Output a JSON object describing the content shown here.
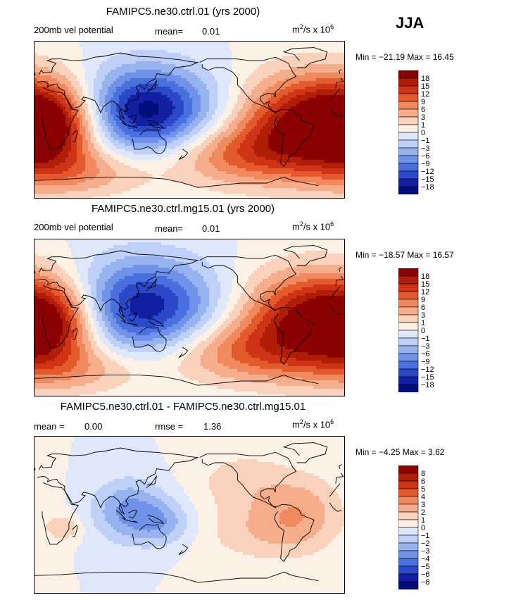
{
  "season": "JJA",
  "panels": [
    {
      "title": "FAMIPC5.ne30.ctrl.01 (yrs 2000)",
      "left_label": "200mb vel potential",
      "stat1_label": "mean=",
      "stat1_value": "0.01",
      "units_base": "m",
      "units_exp1": "2",
      "units_mid": "/s x 10",
      "units_exp2": "6",
      "minmax": "Min = −21.19 Max =  16.45",
      "legend_labels": [
        "18",
        "15",
        "12",
        "9",
        "6",
        "3",
        "1",
        "0",
        "−1",
        "−3",
        "−6",
        "−9",
        "−12",
        "−15",
        "−18"
      ],
      "legend_colors": [
        "#8b0000",
        "#b01e08",
        "#cf3416",
        "#e35a2c",
        "#f08a5e",
        "#f5ad8c",
        "#fad1bb",
        "#fdf0e4",
        "#dfe8fb",
        "#bed0f7",
        "#96b3f0",
        "#6f92e8",
        "#4a6fdf",
        "#2a48c8",
        "#121fa0",
        "#000d7a"
      ],
      "field": {
        "base": "#dfe8fb",
        "blobs": [
          {
            "lon": 20,
            "lat": -5,
            "amp": 0.95,
            "sx": 40,
            "sy": 35
          },
          {
            "lon": -45,
            "lat": -5,
            "amp": 1.0,
            "sx": 55,
            "sy": 40
          },
          {
            "lon": 130,
            "lat": 10,
            "amp": -1.05,
            "sx": 55,
            "sy": 35
          },
          {
            "lon": -130,
            "lat": -40,
            "amp": 0.5,
            "sx": 60,
            "sy": 25
          },
          {
            "lon": 60,
            "lat": -60,
            "amp": 0.35,
            "sx": 60,
            "sy": 20
          }
        ]
      }
    },
    {
      "title": "FAMIPC5.ne30.ctrl.mg15.01 (yrs 2000)",
      "left_label": "200mb vel potential",
      "stat1_label": "mean=",
      "stat1_value": "0.01",
      "units_base": "m",
      "units_exp1": "2",
      "units_mid": "/s x 10",
      "units_exp2": "6",
      "minmax": "Min = −18.57 Max =  16.57",
      "legend_labels": [
        "18",
        "15",
        "12",
        "9",
        "6",
        "3",
        "1",
        "0",
        "−1",
        "−3",
        "−6",
        "−9",
        "−12",
        "−15",
        "−18"
      ],
      "legend_colors": [
        "#8b0000",
        "#b01e08",
        "#cf3416",
        "#e35a2c",
        "#f08a5e",
        "#f5ad8c",
        "#fad1bb",
        "#fdf0e4",
        "#dfe8fb",
        "#bed0f7",
        "#96b3f0",
        "#6f92e8",
        "#4a6fdf",
        "#2a48c8",
        "#121fa0",
        "#000d7a"
      ],
      "field": {
        "base": "#dfe8fb",
        "blobs": [
          {
            "lon": 20,
            "lat": -5,
            "amp": 0.9,
            "sx": 40,
            "sy": 35
          },
          {
            "lon": -45,
            "lat": -5,
            "amp": 0.95,
            "sx": 55,
            "sy": 40
          },
          {
            "lon": 125,
            "lat": 12,
            "amp": -0.95,
            "sx": 60,
            "sy": 38
          },
          {
            "lon": -130,
            "lat": -40,
            "amp": 0.45,
            "sx": 60,
            "sy": 25
          },
          {
            "lon": 60,
            "lat": -60,
            "amp": 0.3,
            "sx": 60,
            "sy": 20
          }
        ]
      }
    },
    {
      "title": "FAMIPC5.ne30.ctrl.01 - FAMIPC5.ne30.ctrl.mg15.01",
      "left_label": "mean =",
      "left_value": "0.00",
      "stat1_label": "rmse =",
      "stat1_value": "1.36",
      "units_base": "m",
      "units_exp1": "2",
      "units_mid": "/s x 10",
      "units_exp2": "6",
      "minmax": "Min =  −4.25 Max =   3.62",
      "legend_labels": [
        "8",
        "6",
        "5",
        "4",
        "3",
        "2",
        "1",
        "0",
        "−1",
        "−2",
        "−3",
        "−4",
        "−5",
        "−6",
        "−8"
      ],
      "legend_colors": [
        "#8b0000",
        "#b01e08",
        "#cf3416",
        "#e35a2c",
        "#f08a5e",
        "#f5ad8c",
        "#fad1bb",
        "#fdf0e4",
        "#dfe8fb",
        "#bed0f7",
        "#96b3f0",
        "#6f92e8",
        "#4a6fdf",
        "#2a48c8",
        "#121fa0",
        "#000d7a"
      ],
      "field": {
        "base": "#e6edfb",
        "blobs": [
          {
            "lon": -50,
            "lat": 5,
            "amp": 0.32,
            "sx": 35,
            "sy": 30
          },
          {
            "lon": 110,
            "lat": 5,
            "amp": -0.45,
            "sx": 30,
            "sy": 25
          },
          {
            "lon": 150,
            "lat": -10,
            "amp": -0.3,
            "sx": 25,
            "sy": 18
          },
          {
            "lon": 35,
            "lat": -15,
            "amp": 0.25,
            "sx": 14,
            "sy": 10
          },
          {
            "lon": -120,
            "lat": 40,
            "amp": 0.2,
            "sx": 40,
            "sy": 25
          },
          {
            "lon": -100,
            "lat": -20,
            "amp": 0.22,
            "sx": 50,
            "sy": 25
          }
        ]
      }
    }
  ]
}
